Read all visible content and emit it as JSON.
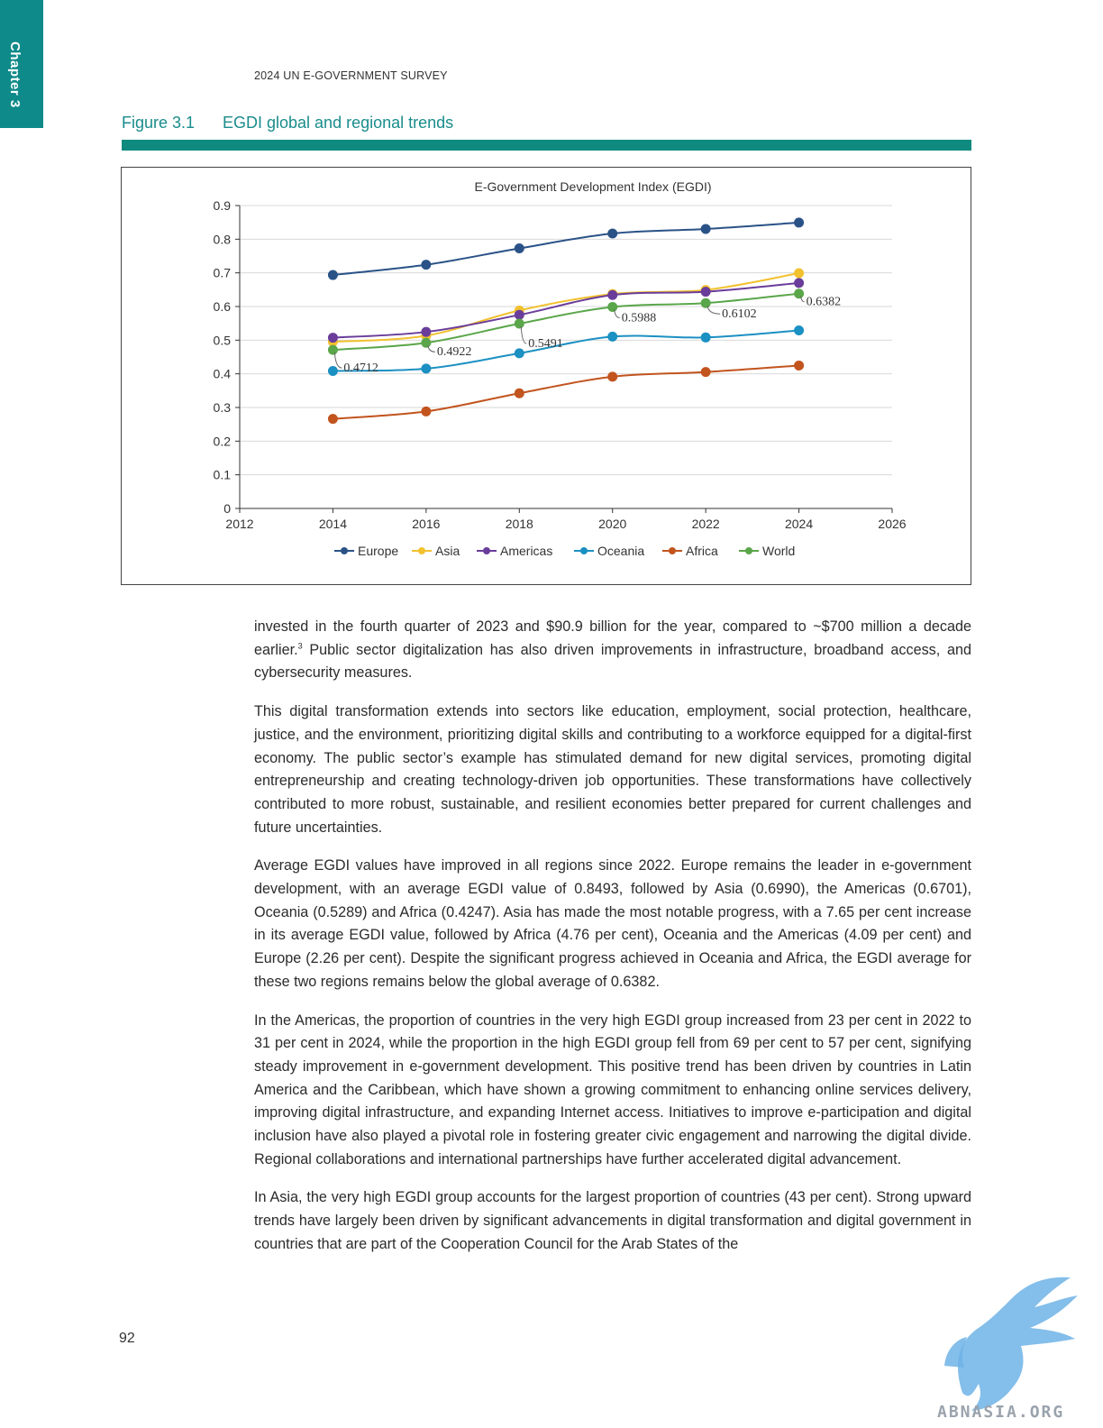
{
  "chapter_tab": "Chapter 3",
  "running_head": "2024 UN E-GOVERNMENT SURVEY",
  "figure": {
    "number": "Figure 3.1",
    "title": "EGDI global and regional trends"
  },
  "chart_data": {
    "type": "line",
    "title": "E-Government Development Index (EGDI)",
    "xlabel": "",
    "ylabel": "",
    "xlim": [
      2012,
      2026
    ],
    "ylim": [
      0,
      0.9
    ],
    "x_ticks": [
      "2012",
      "2014",
      "2016",
      "2018",
      "2020",
      "2022",
      "2024",
      "2026"
    ],
    "y_ticks": [
      "0",
      "0.1",
      "0.2",
      "0.3",
      "0.4",
      "0.5",
      "0.6",
      "0.7",
      "0.8",
      "0.9"
    ],
    "grid": true,
    "legend_position": "bottom",
    "x": [
      2014,
      2016,
      2018,
      2020,
      2022,
      2024
    ],
    "series": [
      {
        "name": "Europe",
        "color": "#2a5287",
        "values": [
          0.6936,
          0.7241,
          0.7727,
          0.817,
          0.8305,
          0.8493
        ]
      },
      {
        "name": "Asia",
        "color": "#f2c12e",
        "values": [
          0.4951,
          0.5132,
          0.5883,
          0.6373,
          0.6493,
          0.699
        ]
      },
      {
        "name": "Americas",
        "color": "#6a3d9a",
        "values": [
          0.5074,
          0.5245,
          0.5751,
          0.6341,
          0.6438,
          0.6701
        ]
      },
      {
        "name": "Oceania",
        "color": "#1b90c2",
        "values": [
          0.4086,
          0.4154,
          0.461,
          0.5106,
          0.5081,
          0.5289
        ]
      },
      {
        "name": "Africa",
        "color": "#c2541e",
        "values": [
          0.2661,
          0.2882,
          0.3423,
          0.3914,
          0.4054,
          0.4247
        ]
      },
      {
        "name": "World",
        "color": "#5aa64a",
        "values": [
          0.4712,
          0.4922,
          0.5491,
          0.5988,
          0.6102,
          0.6382
        ],
        "data_labels": [
          "0.4712",
          "0.4922",
          "0.5491",
          "0.5988",
          "0.6102",
          "0.6382"
        ]
      }
    ]
  },
  "body": {
    "p1_a": "invested in the fourth quarter of 2023 and $90.9 billion for the year, compared to ~$700 million a decade earlier.",
    "p1_sup": "3",
    "p1_b": " Public sector digitalization has also driven improvements in infrastructure, broadband access, and cybersecurity measures.",
    "p2": "This digital transformation extends into sectors like education, employment, social protection, healthcare, justice, and the environment, prioritizing digital skills and contributing to a workforce equipped for a digital-first economy. The public sector’s example has stimulated demand for new digital services, promoting digital entrepreneurship and creating technology-driven job opportunities. These transformations have collectively contributed to more robust, sustainable, and resilient economies better prepared for current challenges and future uncertainties.",
    "p3": "Average EGDI values have improved in all regions since 2022. Europe remains the leader in e-government development, with an average EGDI value of 0.8493, followed by Asia (0.6990), the Americas (0.6701), Oceania (0.5289) and Africa (0.4247). Asia has made the most notable progress, with a 7.65 per cent increase in its average EGDI value, followed by Africa (4.76 per cent), Oceania and the Americas (4.09 per cent) and Europe (2.26 per cent). Despite the significant progress achieved in Oceania and Africa, the EGDI average for these two regions remains below the global average of 0.6382.",
    "p4": "In the Americas, the proportion of countries in the very high EGDI group increased from 23 per cent in 2022 to 31 per cent in 2024, while the proportion in the high EGDI group fell from 69 per cent to 57 per cent, signifying steady improvement in e-government development. This positive trend has been driven by countries in Latin America and the Caribbean, which have shown a growing commitment to enhancing online services delivery, improving digital infrastructure, and expanding Internet access. Initiatives to improve e-participation and digital inclusion have also played a pivotal role in fostering greater civic engagement and narrowing the digital divide. Regional collaborations and international partnerships have further accelerated digital advancement.",
    "p5": "In Asia, the very high EGDI group accounts for the largest proportion of countries (43 per cent). Strong upward trends have largely been driven by significant advancements in digital transformation and digital government in countries that are part of the Cooperation Council for the Arab States of the"
  },
  "page_number": "92",
  "watermark": {
    "text": "ABNASIA.ORG",
    "icon": "griffin-logo"
  }
}
